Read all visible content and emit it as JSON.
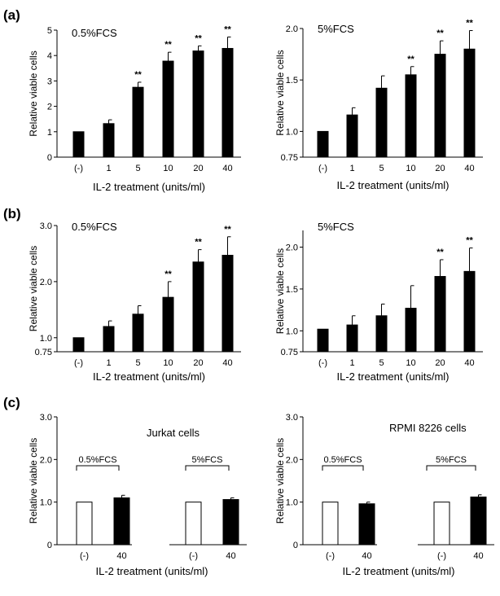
{
  "panel_labels": [
    "(a)",
    "(b)",
    "(c)"
  ],
  "chart_data": [
    {
      "type": "bar",
      "panel": "(a)",
      "title": "0.5%FCS",
      "xlabel": "IL-2 treatment (units/ml)",
      "ylabel": "Relative viable cells",
      "categories": [
        "(-)",
        "1",
        "5",
        "10",
        "20",
        "40"
      ],
      "values": [
        1.0,
        1.32,
        2.75,
        3.78,
        4.18,
        4.28
      ],
      "errors": [
        0,
        0.15,
        0.2,
        0.35,
        0.2,
        0.45
      ],
      "significance": [
        "",
        "",
        "**",
        "**",
        "**",
        "**"
      ],
      "ylim": [
        0,
        5
      ],
      "yticks": [
        "0",
        "1",
        "2",
        "3",
        "4",
        "5"
      ],
      "ytick_values": [
        0,
        1,
        2,
        3,
        4,
        5
      ]
    },
    {
      "type": "bar",
      "panel": "(a)",
      "title": "5%FCS",
      "xlabel": "IL-2 treatment (units/ml)",
      "ylabel": "Relative viable cells",
      "categories": [
        "(-)",
        "1",
        "5",
        "10",
        "20",
        "40"
      ],
      "values": [
        1.0,
        1.16,
        1.42,
        1.55,
        1.75,
        1.8
      ],
      "errors": [
        0,
        0.07,
        0.12,
        0.08,
        0.13,
        0.18
      ],
      "significance": [
        "",
        "",
        "",
        "**",
        "**",
        "**"
      ],
      "ylim": [
        0.75,
        2.0
      ],
      "yticks": [
        "0.75",
        "1.0",
        "1.5",
        "2.0"
      ],
      "ytick_values": [
        0.75,
        1.0,
        1.5,
        2.0
      ]
    },
    {
      "type": "bar",
      "panel": "(b)",
      "title": "0.5%FCS",
      "xlabel": "IL-2 treatment (units/ml)",
      "ylabel": "Relative viable cells",
      "categories": [
        "(-)",
        "1",
        "5",
        "10",
        "20",
        "40"
      ],
      "values": [
        1.0,
        1.2,
        1.42,
        1.72,
        2.35,
        2.47
      ],
      "errors": [
        0,
        0.1,
        0.15,
        0.28,
        0.22,
        0.33
      ],
      "significance": [
        "",
        "",
        "",
        "**",
        "**",
        "**"
      ],
      "ylim": [
        0.75,
        3.0
      ],
      "yticks": [
        "0.75",
        "1.0",
        "2.0",
        "3.0"
      ],
      "ytick_values": [
        0.75,
        1.0,
        2.0,
        3.0
      ]
    },
    {
      "type": "bar",
      "panel": "(b)",
      "title": "5%FCS",
      "xlabel": "IL-2 treatment (units/ml)",
      "ylabel": "Relative viable cells",
      "categories": [
        "(-)",
        "1",
        "5",
        "10",
        "20",
        "40"
      ],
      "values": [
        1.02,
        1.07,
        1.18,
        1.27,
        1.65,
        1.71
      ],
      "errors": [
        0,
        0.11,
        0.14,
        0.27,
        0.2,
        0.28
      ],
      "significance": [
        "",
        "",
        "",
        "",
        "**",
        "**"
      ],
      "ylim": [
        0.75,
        2.2
      ],
      "yticks": [
        "0.75",
        "1.0",
        "1.5",
        "2.0"
      ],
      "ytick_values": [
        0.75,
        1.0,
        1.5,
        2.0
      ]
    },
    {
      "type": "bar",
      "panel": "(c)",
      "title": "Jurkat cells",
      "xlabel": "IL-2 treatment (units/ml)",
      "ylabel": "Relative viable cells",
      "categories": [
        "(-)",
        "40",
        "(-)",
        "40"
      ],
      "groups": [
        "0.5%FCS",
        "5%FCS"
      ],
      "values": [
        1.0,
        1.1,
        1.0,
        1.06
      ],
      "errors": [
        0,
        0.06,
        0,
        0.04
      ],
      "fills": [
        "#ffffff",
        "#000000",
        "#ffffff",
        "#000000"
      ],
      "ylim": [
        0,
        3.0
      ],
      "yticks": [
        "0",
        "1.0",
        "2.0",
        "3.0"
      ],
      "ytick_values": [
        0,
        1.0,
        2.0,
        3.0
      ]
    },
    {
      "type": "bar",
      "panel": "(c)",
      "title": "RPMI 8226 cells",
      "xlabel": "IL-2 treatment (units/ml)",
      "ylabel": "Relative viable cells",
      "categories": [
        "(-)",
        "40",
        "(-)",
        "40"
      ],
      "groups": [
        "0.5%FCS",
        "5%FCS"
      ],
      "values": [
        1.0,
        0.96,
        1.0,
        1.12
      ],
      "errors": [
        0,
        0.04,
        0,
        0.05
      ],
      "fills": [
        "#ffffff",
        "#000000",
        "#ffffff",
        "#000000"
      ],
      "ylim": [
        0,
        3.0
      ],
      "yticks": [
        "0",
        "1.0",
        "2.0",
        "3.0"
      ],
      "ytick_values": [
        0,
        1.0,
        2.0,
        3.0
      ]
    }
  ]
}
